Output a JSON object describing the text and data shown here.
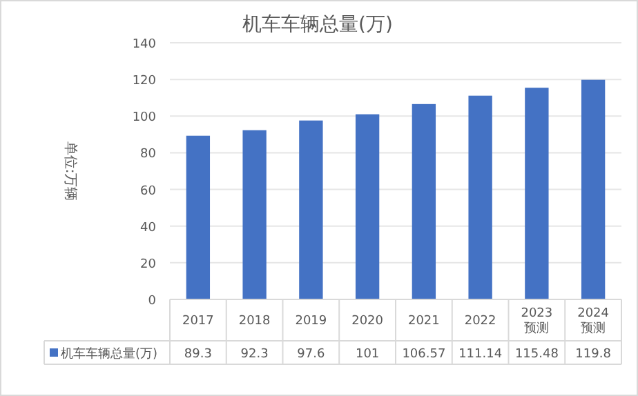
{
  "chart_data": {
    "type": "bar",
    "title": "机车车辆总量(万)",
    "ylabel": "单位:万辆",
    "categories": [
      "2017",
      "2018",
      "2019",
      "2020",
      "2021",
      "2022",
      "2023 预测",
      "2024 预测"
    ],
    "series": [
      {
        "name": "机车车辆总量(万)",
        "color": "#4472c4",
        "values": [
          89.3,
          92.3,
          97.6,
          101,
          106.57,
          111.14,
          115.48,
          119.8
        ]
      }
    ],
    "ylim": [
      0,
      140
    ],
    "yticks": [
      0,
      20,
      40,
      60,
      80,
      100,
      120,
      140
    ],
    "grid": "y",
    "legend": "bottom",
    "data_labels": true
  }
}
